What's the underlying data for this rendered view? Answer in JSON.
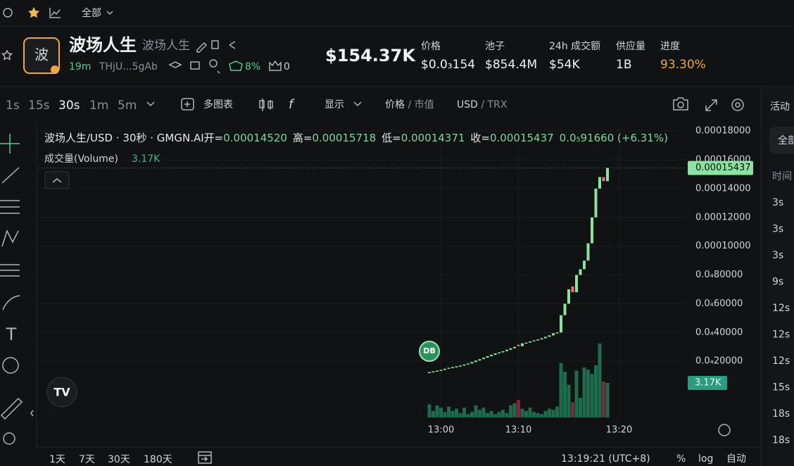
{
  "top_bar": {
    "filter": "全部"
  },
  "token": {
    "avatar": "波",
    "name": "波场人生",
    "alias": "波场人生",
    "age": "19m",
    "address": "THjU...5gAb",
    "holders_pct": "8%",
    "count": "0",
    "market_cap": "$154.37K"
  },
  "stats": [
    {
      "label": "价格",
      "value": "$0.0₃154"
    },
    {
      "label": "池子",
      "value": "$854.4M"
    },
    {
      "label": "24h 成交额",
      "value": "$54K"
    },
    {
      "label": "供应量",
      "value": "1B"
    },
    {
      "label": "进度",
      "value": "93.30%"
    }
  ],
  "toolbar": {
    "intervals": [
      "1s",
      "15s",
      "30s",
      "1m",
      "5m"
    ],
    "multi_chart": "多图表",
    "display": "显示",
    "price": "价格",
    "mcap": "市值",
    "usd": "USD",
    "trx": "TRX"
  },
  "chart_data": {
    "type": "candlestick",
    "title": "波场人生/USD · 30秒 · GMGN.AI",
    "ohlc_labels": [
      {
        "label": "开=",
        "value": "0.00014520"
      },
      {
        "label": "高=",
        "value": "0.00015718"
      },
      {
        "label": "低=",
        "value": "0.00014371"
      },
      {
        "label": "收=",
        "value": "0.00015437"
      }
    ],
    "change": "0.0₅91660 (+6.31%)",
    "volume_title": "成交量(Volume)",
    "volume_label": "3.17K",
    "last_price_label": "0.00015437",
    "marker": "DB",
    "open": [
      1.2e-05,
      1.25e-05,
      1.3e-05,
      1.35e-05,
      1.4e-05,
      1.48e-05,
      1.55e-05,
      1.6e-05,
      1.65e-05,
      1.7e-05,
      1.78e-05,
      1.85e-05,
      1.95e-05,
      2.05e-05,
      2.15e-05,
      2.25e-05,
      2.35e-05,
      2.45e-05,
      2.55e-05,
      2.62e-05,
      2.7e-05,
      2.8e-05,
      2.9e-05,
      3.15e-05,
      3.05e-05,
      3.25e-05,
      3.3e-05,
      3.38e-05,
      3.45e-05,
      3.52e-05,
      3.6e-05,
      3.7e-05,
      3.8e-05,
      3.95e-05,
      4e-05,
      5.2e-05,
      6e-05,
      7.2e-05,
      6.8e-05,
      8e-05,
      8.4e-05,
      9e-05,
      0.000102,
      0.00012,
      0.00014,
      0.000148,
      0.0001452
    ],
    "close": [
      1.25e-05,
      1.3e-05,
      1.35e-05,
      1.4e-05,
      1.48e-05,
      1.55e-05,
      1.6e-05,
      1.65e-05,
      1.7e-05,
      1.78e-05,
      1.85e-05,
      1.95e-05,
      2.05e-05,
      2.15e-05,
      2.25e-05,
      2.35e-05,
      2.45e-05,
      2.55e-05,
      2.62e-05,
      2.7e-05,
      2.8e-05,
      2.9e-05,
      3e-05,
      3.05e-05,
      3.25e-05,
      3.3e-05,
      3.38e-05,
      3.45e-05,
      3.52e-05,
      3.6e-05,
      3.7e-05,
      3.8e-05,
      3.95e-05,
      4e-05,
      5.2e-05,
      6e-05,
      7e-05,
      6.8e-05,
      8e-05,
      8.4e-05,
      9e-05,
      0.000102,
      0.00012,
      0.00014,
      0.000148,
      0.0001452,
      0.00015437
    ],
    "volume": [
      1.2,
      0.6,
      1.1,
      0.9,
      0.5,
      1.0,
      0.6,
      0.8,
      0.4,
      0.9,
      0.3,
      0.5,
      1.1,
      0.7,
      0.9,
      0.4,
      0.6,
      0.3,
      0.5,
      0.7,
      0.4,
      1.1,
      1.3,
      1.6,
      0.8,
      0.6,
      0.9,
      0.5,
      0.4,
      0.3,
      0.6,
      0.8,
      0.7,
      1.0,
      5.0,
      4.2,
      3.0,
      1.4,
      4.3,
      1.8,
      4.6,
      4.4,
      4.0,
      4.8,
      6.8,
      3.3,
      3.17
    ],
    "ylim": [
      -2e-05,
      0.000184
    ],
    "yticks": [
      {
        "value": 2e-05,
        "label": "0.0₄20000"
      },
      {
        "value": 4e-05,
        "label": "0.0₄40000"
      },
      {
        "value": 6e-05,
        "label": "0.0₄60000"
      },
      {
        "value": 8e-05,
        "label": "0.0₄80000"
      },
      {
        "value": 0.0001,
        "label": "0.00010000"
      },
      {
        "value": 0.00012,
        "label": "0.00012000"
      },
      {
        "value": 0.00014,
        "label": "0.00014000"
      },
      {
        "value": 0.00016,
        "label": "0.00016000"
      },
      {
        "value": 0.00018,
        "label": "0.00018000"
      }
    ],
    "volume_ylim": [
      0,
      27
    ],
    "xticks": [
      {
        "value": 3,
        "label": "13:00"
      },
      {
        "value": 23,
        "label": "13:10"
      },
      {
        "value": 49,
        "label": "13:20"
      }
    ],
    "grid": true,
    "colors": {
      "up": "#8be3a0",
      "down": "#e0737c",
      "volume_up": "#1e6b4e",
      "volume_down": "#7a2b38"
    }
  },
  "bottom_bar": {
    "ranges": [
      "1天",
      "7天",
      "30天",
      "180天"
    ],
    "clock": "13:19:21 (UTC+8)",
    "percent": "%",
    "log": "log",
    "auto": "自动"
  },
  "activity": {
    "title": "活动",
    "filter": "全部",
    "time_header": "时间",
    "times": [
      "3s",
      "3s",
      "3s",
      "9s",
      "12s",
      "12s",
      "12s",
      "15s",
      "18s",
      "18s"
    ]
  }
}
